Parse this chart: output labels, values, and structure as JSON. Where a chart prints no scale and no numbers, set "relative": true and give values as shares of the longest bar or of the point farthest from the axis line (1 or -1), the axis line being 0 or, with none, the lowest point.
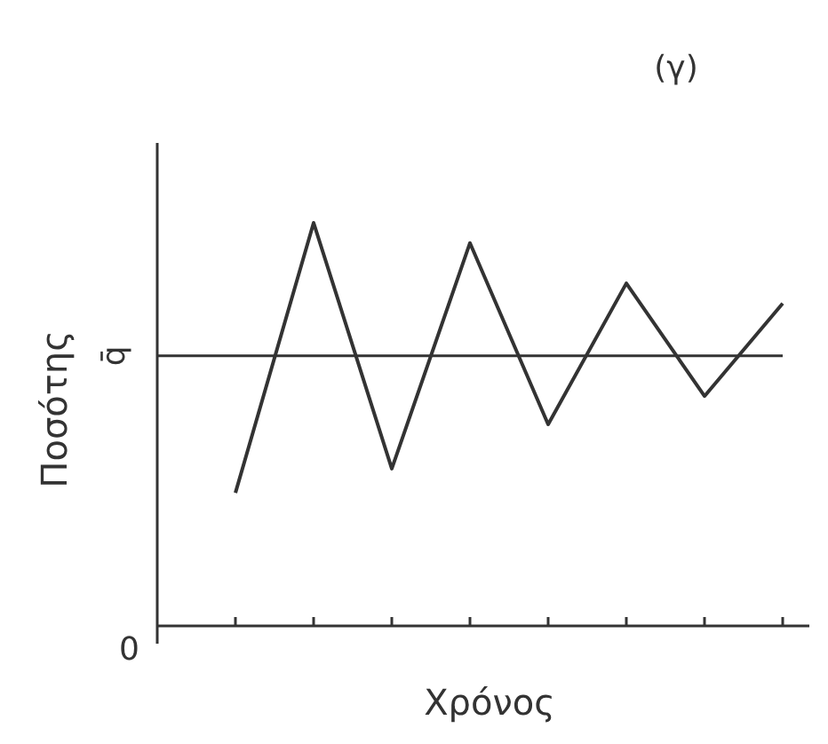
{
  "chart_data": {
    "type": "line",
    "relative": true,
    "ylabel": "Ποσότης",
    "xlabel": "Χρόνος",
    "annotations": [
      "(γ)",
      "0"
    ],
    "categories": [
      null,
      null,
      null,
      null,
      null,
      null,
      null,
      null
    ],
    "series": [
      {
        "color": "#333333",
        "values": [
          0.33,
          1,
          0.39,
          0.95,
          0.5,
          0.85,
          0.57,
          0.8
        ]
      }
    ],
    "ref_lines": [
      {
        "axis": "y",
        "value": 0.67,
        "label": "q̄",
        "color": "#333333"
      }
    ],
    "grid": false,
    "marker": "none",
    "line_style": "solid"
  }
}
